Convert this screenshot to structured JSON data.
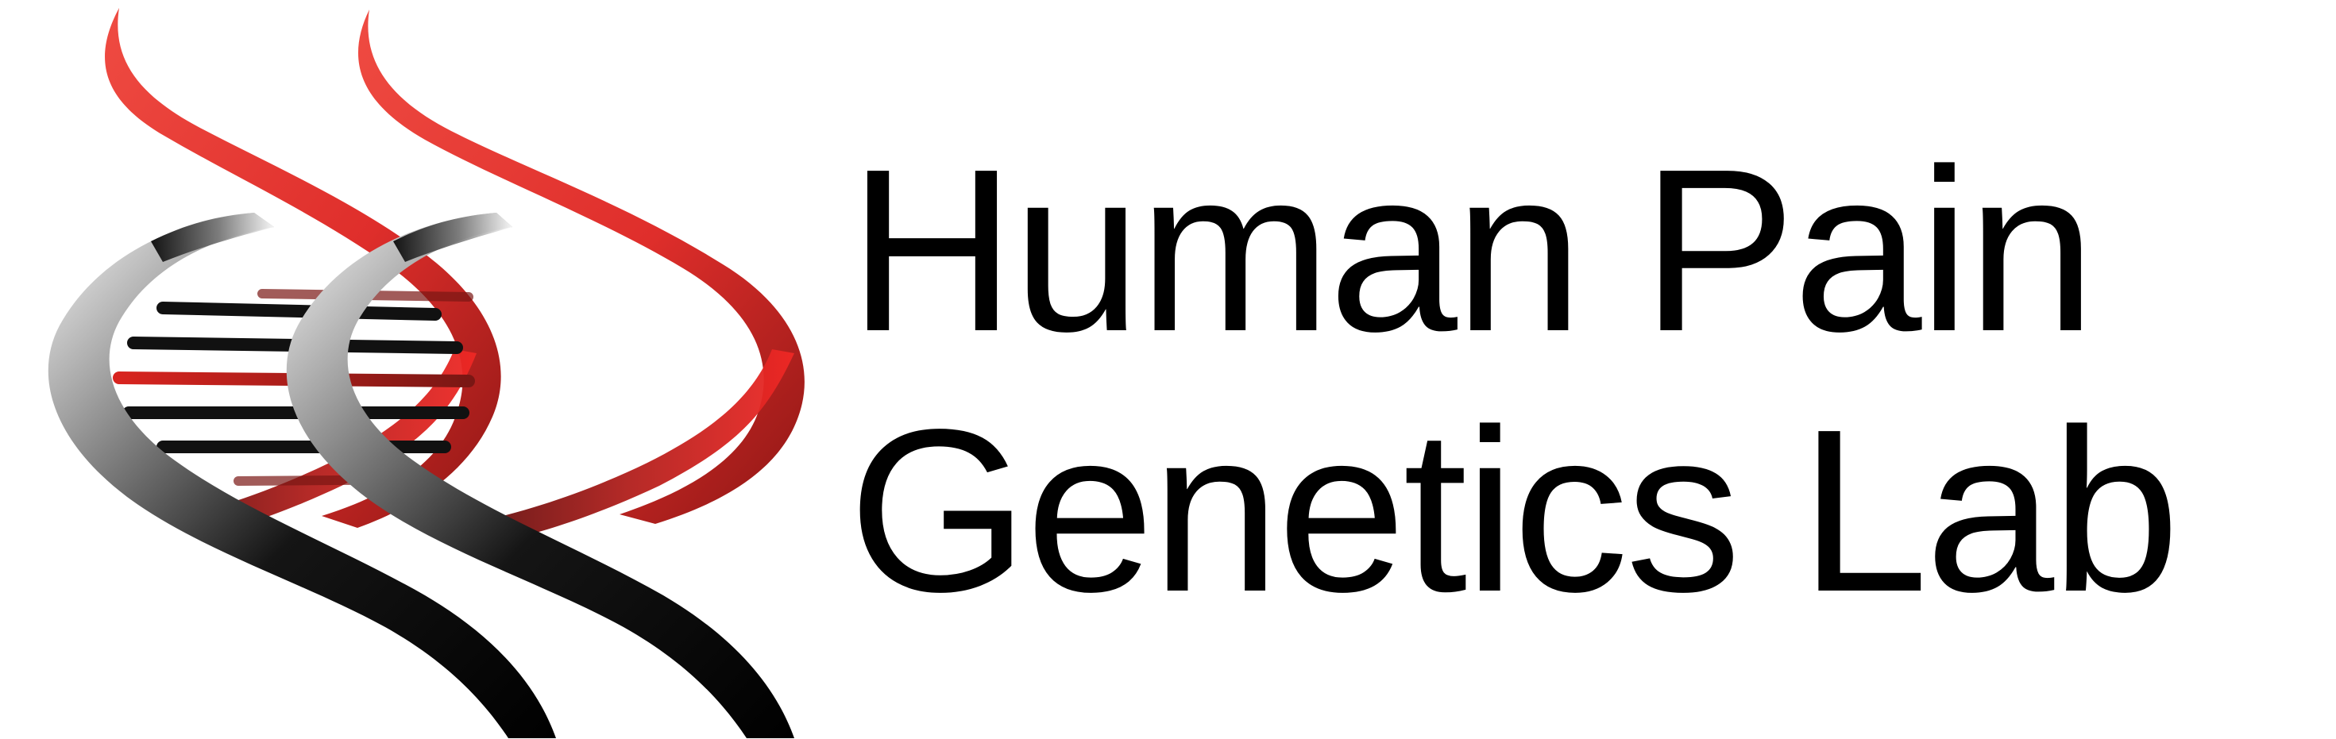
{
  "logo": {
    "line1": "Human Pain",
    "line2": "Genetics Lab",
    "emblem_icon": "dna-double-helix-icon"
  },
  "colors": {
    "background": "#ffffff",
    "text": "#000000",
    "helix_red": "#e33a34",
    "helix_dark_red": "#9b1e1b",
    "helix_black": "#111111",
    "helix_grey": "#bdbdbd"
  }
}
